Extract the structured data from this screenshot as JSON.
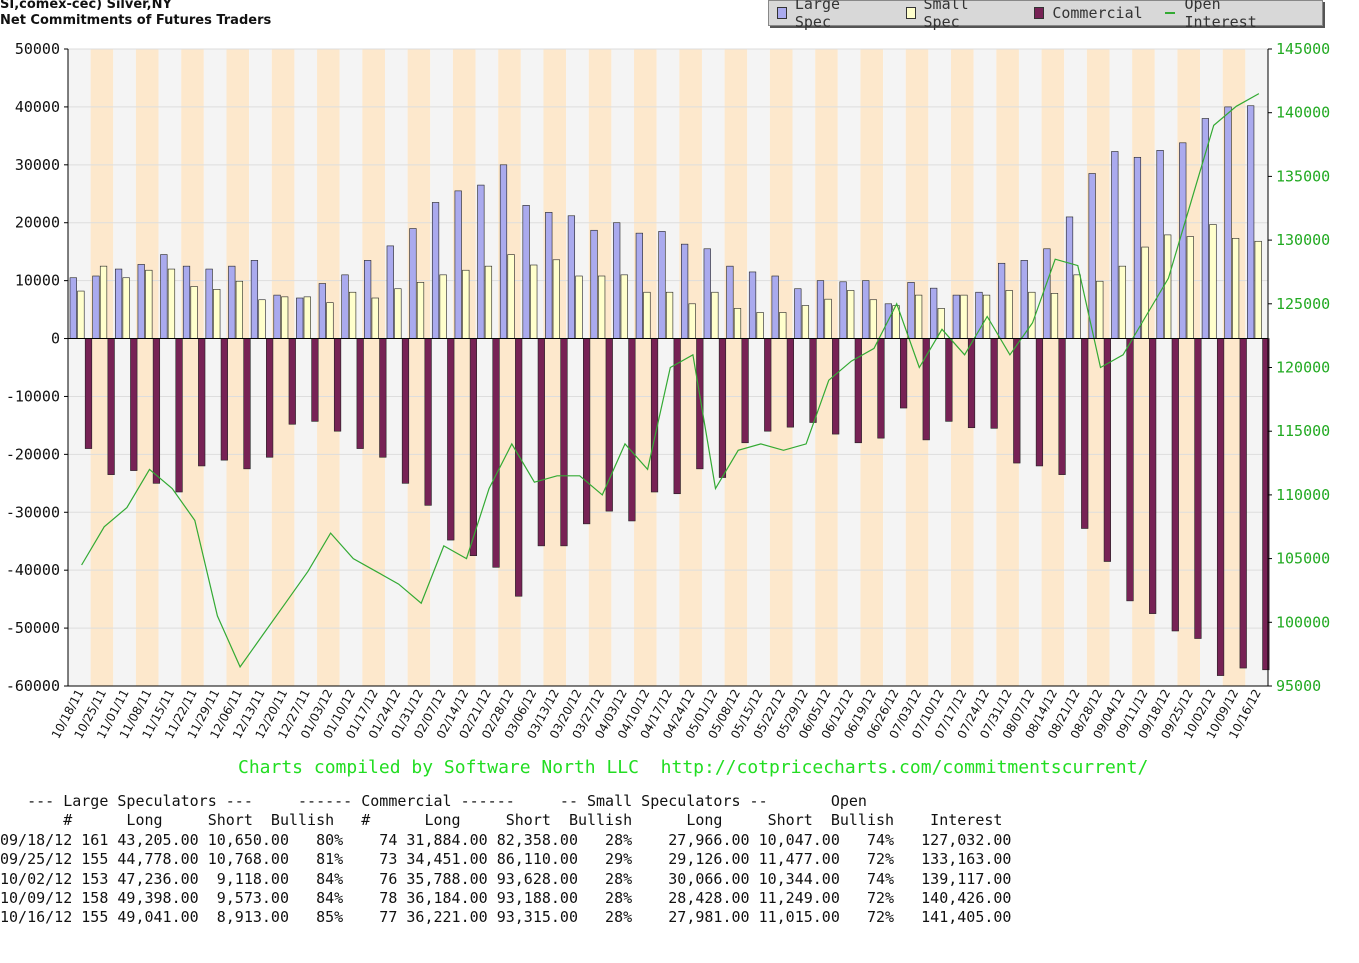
{
  "header": {
    "title_line1": "SI,comex-cec) Silver,NY",
    "title_line2": "Net Commitments of Futures Traders"
  },
  "legend": [
    {
      "label": "Large Spec",
      "color": "#aaaaee"
    },
    {
      "label": "Small Spec",
      "color": "#ffffcc"
    },
    {
      "label": "Commercial",
      "color": "#772255"
    },
    {
      "label": "Open Interest",
      "color": "#33aa33"
    }
  ],
  "credit": "Charts compiled by Software North LLC  http://cotpricecharts.com/commitmentscurrent/",
  "chart_data": {
    "type": "bar",
    "title": "SI,comex-cec) Silver,NY Net Commitments of Futures Traders",
    "left_axis": {
      "ylim": [
        -60000,
        50000
      ],
      "ticks": [
        "50000",
        "40000",
        "30000",
        "20000",
        "10000",
        "0",
        "-10000",
        "-20000",
        "-30000",
        "-40000",
        "-50000",
        "-60000"
      ]
    },
    "right_axis": {
      "ylim": [
        95000,
        145000
      ],
      "ticks": [
        "145000",
        "140000",
        "135000",
        "130000",
        "125000",
        "120000",
        "115000",
        "110000",
        "105000",
        "100000",
        "95000"
      ]
    },
    "x_tick_labels": [
      "10/18/11",
      "10/25/11",
      "11/01/11",
      "11/08/11",
      "11/15/11",
      "11/22/11",
      "11/29/11",
      "12/06/11",
      "12/13/11",
      "12/20/11",
      "12/27/11",
      "01/03/12",
      "01/10/12",
      "01/17/12",
      "01/24/12",
      "01/31/12",
      "02/07/12",
      "02/14/12",
      "02/21/12",
      "02/28/12",
      "03/06/12",
      "03/13/12",
      "03/20/12",
      "03/27/12",
      "04/03/12",
      "04/10/12",
      "04/17/12",
      "04/24/12",
      "05/01/12",
      "05/08/12",
      "05/15/12",
      "05/22/12",
      "05/29/12",
      "06/05/12",
      "06/12/12",
      "06/19/12",
      "06/26/12",
      "07/03/12",
      "07/10/12",
      "07/17/12",
      "07/24/12",
      "07/31/12",
      "08/07/12",
      "08/14/12",
      "08/21/12",
      "08/28/12",
      "09/04/12",
      "09/11/12",
      "09/18/12",
      "09/25/12",
      "10/02/12",
      "10/09/12",
      "10/16/12"
    ],
    "background_stripes": [
      "#f4f4f4",
      "#fde8cc"
    ],
    "grid": true,
    "legend_position": "top-right",
    "series": [
      {
        "name": "Large Spec",
        "axis": "left",
        "color": "#aaaaee",
        "values": [
          10500,
          10800,
          12000,
          12800,
          14500,
          12500,
          12000,
          12500,
          13500,
          7500,
          7000,
          9500,
          11000,
          13500,
          16000,
          19000,
          23500,
          25500,
          26500,
          30000,
          23000,
          21800,
          21200,
          18700,
          20000,
          18200,
          18500,
          16300,
          15500,
          12500,
          11500,
          10800,
          8600,
          10000,
          9800,
          10000,
          6000,
          9700,
          8700,
          7500,
          8000,
          13000,
          13500,
          15500,
          21000,
          28500,
          32300,
          31300,
          32500,
          33800,
          38000,
          40000,
          40200
        ]
      },
      {
        "name": "Small Spec",
        "axis": "left",
        "color": "#ffffcc",
        "values": [
          8200,
          12500,
          10500,
          11800,
          12000,
          9000,
          8500,
          9900,
          6700,
          7200,
          7200,
          6200,
          8000,
          7000,
          8600,
          9700,
          11000,
          11800,
          12500,
          14500,
          12700,
          13600,
          10800,
          10800,
          11000,
          8000,
          8000,
          6000,
          8000,
          5200,
          4500,
          4500,
          5700,
          6800,
          8300,
          6700,
          5700,
          7500,
          5200,
          7500,
          7500,
          8300,
          8000,
          7800,
          11000,
          9900,
          12500,
          15800,
          17900,
          17600,
          19700,
          17300,
          16800
        ]
      },
      {
        "name": "Commercial",
        "axis": "left",
        "color": "#772255",
        "values": [
          -19000,
          -23500,
          -22800,
          -25000,
          -26500,
          -22000,
          -21000,
          -22500,
          -20500,
          -14800,
          -14300,
          -16000,
          -19000,
          -20500,
          -25000,
          -28800,
          -34800,
          -37500,
          -39500,
          -44500,
          -35800,
          -35800,
          -32000,
          -29800,
          -31500,
          -26500,
          -26800,
          -22500,
          -24000,
          -18000,
          -16000,
          -15300,
          -14500,
          -16500,
          -18000,
          -17200,
          -12000,
          -17500,
          -14300,
          -15400,
          -15500,
          -21500,
          -22000,
          -23500,
          -32800,
          -38500,
          -45300,
          -47500,
          -50500,
          -51800,
          -58200,
          -56900,
          -57200
        ]
      },
      {
        "name": "Open Interest",
        "axis": "right",
        "color": "#33aa33",
        "values": [
          104500,
          107500,
          109000,
          112000,
          110500,
          108000,
          100500,
          96500,
          99000,
          101500,
          104000,
          107000,
          105000,
          104000,
          103000,
          101500,
          106000,
          105000,
          110500,
          114000,
          111000,
          111500,
          111500,
          110000,
          114000,
          112000,
          120000,
          121000,
          110500,
          113500,
          114000,
          113500,
          114000,
          119000,
          120500,
          121500,
          125000,
          120000,
          123000,
          121000,
          124000,
          121000,
          123500,
          128500,
          128000,
          120000,
          121000,
          124000,
          127000,
          133000,
          139000,
          140500,
          141500
        ]
      }
    ]
  },
  "table": {
    "header1": "   --- Large Speculators ---     ------ Commercial ------     -- Small Speculators --       Open",
    "header2": "       #      Long     Short  Bullish   #      Long     Short  Bullish      Long     Short  Bullish    Interest",
    "rows": [
      "09/18/12 161 43,205.00 10,650.00   80%    74 31,884.00 82,358.00   28%    27,966.00 10,047.00   74%   127,032.00",
      "09/25/12 155 44,778.00 10,768.00   81%    73 34,451.00 86,110.00   29%    29,126.00 11,477.00   72%   133,163.00",
      "10/02/12 153 47,236.00  9,118.00   84%    76 35,788.00 93,628.00   28%    30,066.00 10,344.00   74%   139,117.00",
      "10/09/12 158 49,398.00  9,573.00   84%    78 36,184.00 93,188.00   28%    28,428.00 11,249.00   72%   140,426.00",
      "10/16/12 155 49,041.00  8,913.00   85%    77 36,221.00 93,315.00   28%    27,981.00 11,015.00   72%   141,405.00"
    ]
  }
}
